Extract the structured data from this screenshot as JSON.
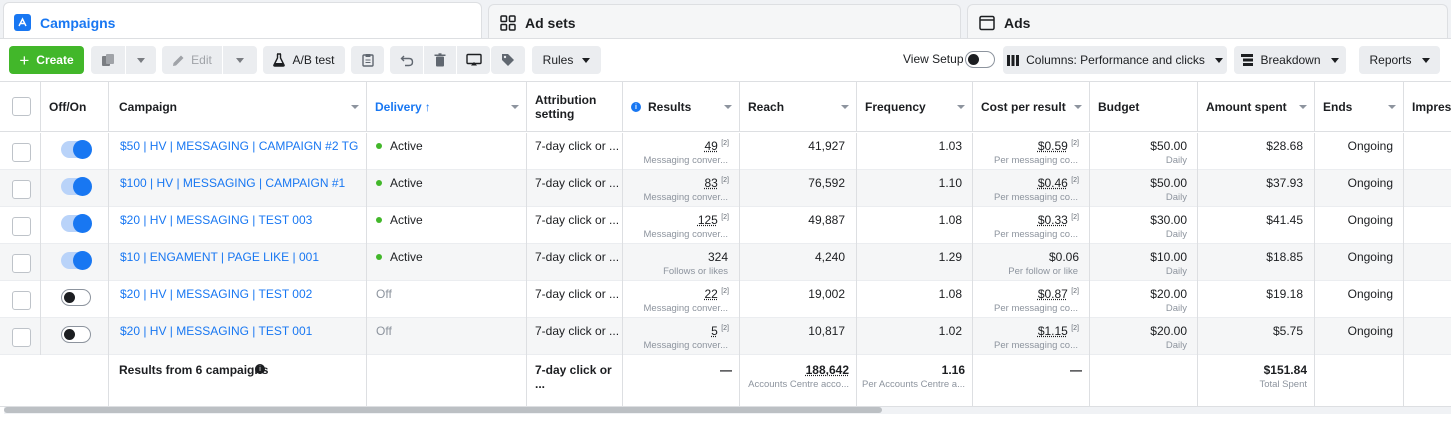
{
  "tabs": [
    {
      "label": "Campaigns",
      "icon": "campaigns-icon"
    },
    {
      "label": "Ad sets",
      "icon": "ad-sets-icon"
    },
    {
      "label": "Ads",
      "icon": "ads-icon"
    }
  ],
  "toolbar": {
    "create_label": "Create",
    "edit_label": "Edit",
    "ab_test_label": "A/B test",
    "rules_label": "Rules",
    "view_setup_label": "View Setup",
    "columns_label": "Columns: Performance and clicks",
    "breakdown_label": "Breakdown",
    "reports_label": "Reports"
  },
  "columns": {
    "off_on": "Off/On",
    "campaign": "Campaign",
    "delivery": "Delivery",
    "attribution": "Attribution setting",
    "results": "Results",
    "reach": "Reach",
    "frequency": "Frequency",
    "cost_per_result": "Cost per result",
    "budget": "Budget",
    "amount_spent": "Amount spent",
    "ends": "Ends",
    "impressions": "Impres"
  },
  "rows": [
    {
      "on": true,
      "campaign": "$50 | HV | MESSAGING | CAMPAIGN #2 TG",
      "delivery": "Active",
      "attribution": "7-day click or ...",
      "results": "49",
      "results_sup": "[2]",
      "results_sub": "Messaging conver...",
      "reach": "41,927",
      "frequency": "1.03",
      "cost": "$0.59",
      "cost_sup": "[2]",
      "cost_sub": "Per messaging co...",
      "budget": "$50.00",
      "budget_sub": "Daily",
      "spent": "$28.68",
      "ends": "Ongoing"
    },
    {
      "on": true,
      "campaign": "$100 | HV | MESSAGING | CAMPAIGN #1",
      "delivery": "Active",
      "attribution": "7-day click or ...",
      "results": "83",
      "results_sup": "[2]",
      "results_sub": "Messaging conver...",
      "reach": "76,592",
      "frequency": "1.10",
      "cost": "$0.46",
      "cost_sup": "[2]",
      "cost_sub": "Per messaging co...",
      "budget": "$50.00",
      "budget_sub": "Daily",
      "spent": "$37.93",
      "ends": "Ongoing"
    },
    {
      "on": true,
      "campaign": "$20 | HV | MESSAGING | TEST 003",
      "delivery": "Active",
      "attribution": "7-day click or ...",
      "results": "125",
      "results_sup": "[2]",
      "results_sub": "Messaging conver...",
      "reach": "49,887",
      "frequency": "1.08",
      "cost": "$0.33",
      "cost_sup": "[2]",
      "cost_sub": "Per messaging co...",
      "budget": "$30.00",
      "budget_sub": "Daily",
      "spent": "$41.45",
      "ends": "Ongoing"
    },
    {
      "on": true,
      "campaign": "$10 | ENGAMENT | PAGE LIKE | 001",
      "delivery": "Active",
      "attribution": "7-day click or ...",
      "results": "324",
      "results_sup": "",
      "results_sub": "Follows or likes",
      "reach": "4,240",
      "frequency": "1.29",
      "cost": "$0.06",
      "cost_sup": "",
      "cost_sub": "Per follow or like",
      "budget": "$10.00",
      "budget_sub": "Daily",
      "spent": "$18.85",
      "ends": "Ongoing"
    },
    {
      "on": false,
      "campaign": "$20 | HV | MESSAGING | TEST 002",
      "delivery": "Off",
      "attribution": "7-day click or ...",
      "results": "22",
      "results_sup": "[2]",
      "results_sub": "Messaging conver...",
      "reach": "19,002",
      "frequency": "1.08",
      "cost": "$0.87",
      "cost_sup": "[2]",
      "cost_sub": "Per messaging co...",
      "budget": "$20.00",
      "budget_sub": "Daily",
      "spent": "$19.18",
      "ends": "Ongoing"
    },
    {
      "on": false,
      "campaign": "$20 | HV | MESSAGING | TEST 001",
      "delivery": "Off",
      "attribution": "7-day click or ...",
      "results": "5",
      "results_sup": "[2]",
      "results_sub": "Messaging conver...",
      "reach": "10,817",
      "frequency": "1.02",
      "cost": "$1.15",
      "cost_sup": "[2]",
      "cost_sub": "Per messaging co...",
      "budget": "$20.00",
      "budget_sub": "Daily",
      "spent": "$5.75",
      "ends": "Ongoing"
    }
  ],
  "totals": {
    "label": "Results from 6 campaigns",
    "attribution": "7-day click or ...",
    "results": "—",
    "reach": "188,642",
    "reach_sub": "Accounts Centre acco...",
    "frequency": "1.16",
    "frequency_sub": "Per Accounts Centre a...",
    "cost": "—",
    "spent": "$151.84",
    "spent_sub": "Total Spent"
  },
  "colors": {
    "accent": "#1877f2",
    "create_green": "#42b72a",
    "active_dot": "#42b72a"
  }
}
